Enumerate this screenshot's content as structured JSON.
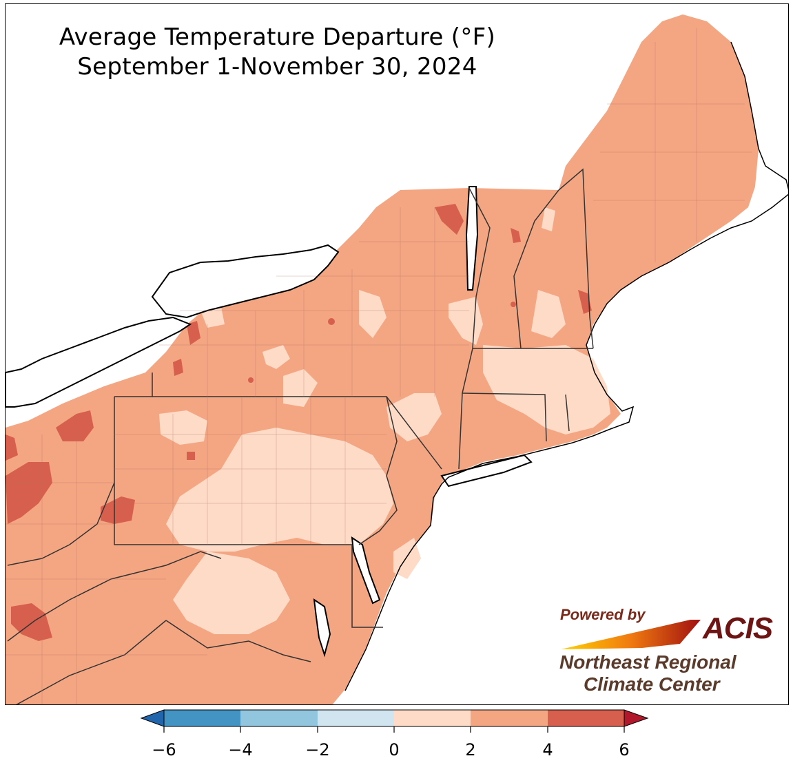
{
  "title": {
    "line1": "Average Temperature Departure (°F)",
    "line2": "September 1-November 30, 2024"
  },
  "colorbar": {
    "ticks": [
      "−6",
      "−4",
      "−2",
      "0",
      "2",
      "4",
      "6"
    ],
    "bins": [
      {
        "range": [
          -6,
          -4
        ],
        "color": "#4393c3"
      },
      {
        "range": [
          -4,
          -2
        ],
        "color": "#92c5de"
      },
      {
        "range": [
          -2,
          0
        ],
        "color": "#d1e5f0"
      },
      {
        "range": [
          0,
          2
        ],
        "color": "#fddbc7"
      },
      {
        "range": [
          2,
          4
        ],
        "color": "#f4a582"
      },
      {
        "range": [
          4,
          6
        ],
        "color": "#d6604d"
      }
    ],
    "under_color": "#2166ac",
    "over_color": "#b2182b"
  },
  "logo": {
    "powered_by": "Powered by",
    "acis": "ACIS",
    "org_line1": "Northeast Regional",
    "org_line2": "Climate Center"
  }
}
